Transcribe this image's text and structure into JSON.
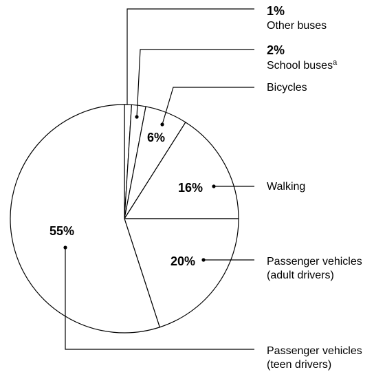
{
  "chart_data": {
    "type": "pie",
    "categories": [
      "Other buses",
      "School buses",
      "Bicycles",
      "Walking",
      "Passenger vehicles (adult drivers)",
      "Passenger vehicles (teen drivers)"
    ],
    "values": [
      1,
      2,
      6,
      16,
      20,
      55
    ],
    "value_labels": [
      "1%",
      "2%",
      "6%",
      "16%",
      "20%",
      "55%"
    ],
    "annotations": [
      "a"
    ],
    "color": "#ffffff"
  }
}
